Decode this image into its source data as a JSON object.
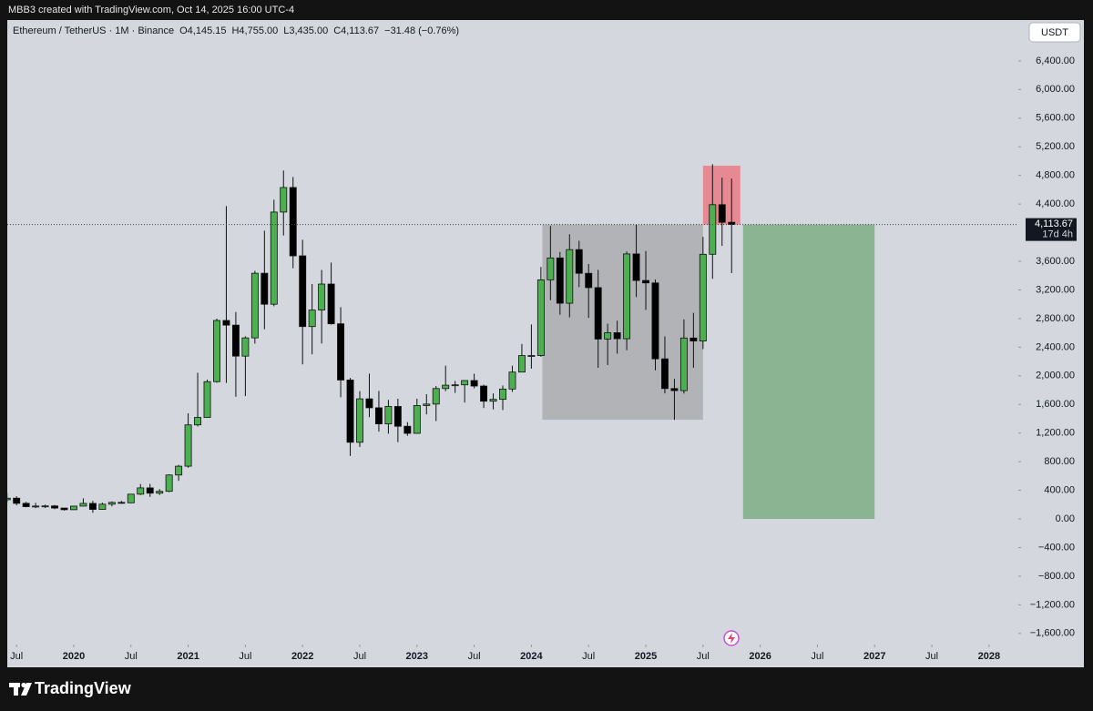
{
  "chart_data": {
    "type": "candlestick",
    "header": "MBB3 created with TradingView.com, Oct 14, 2025 16:00 UTC-4",
    "legend": {
      "symbol": "Ethereum / TetherUS · 1M · Binance",
      "items": [
        "O4,145.15",
        "H4,755.00",
        "L3,435.00",
        "C4,113.67",
        "−31.48 (−0.76%)"
      ]
    },
    "currency": "USDT",
    "footer": "TradingView",
    "up_color": "#4caf50",
    "down_color": "#000000",
    "border_color": "#111111",
    "x": [
      2019.4167,
      2019.5,
      2019.5833,
      2019.6667,
      2019.75,
      2019.8333,
      2019.9167,
      2020,
      2020.0833,
      2020.1667,
      2020.25,
      2020.3333,
      2020.4167,
      2020.5,
      2020.5833,
      2020.6667,
      2020.75,
      2020.8333,
      2020.9167,
      2021,
      2021.0833,
      2021.1667,
      2021.25,
      2021.3333,
      2021.4167,
      2021.5,
      2021.5833,
      2021.6667,
      2021.75,
      2021.8333,
      2021.9167,
      2022,
      2022.0833,
      2022.1667,
      2022.25,
      2022.3333,
      2022.4167,
      2022.5,
      2022.5833,
      2022.6667,
      2022.75,
      2022.8333,
      2022.9167,
      2023,
      2023.0833,
      2023.1667,
      2023.25,
      2023.3333,
      2023.4167,
      2023.5,
      2023.5833,
      2023.6667,
      2023.75,
      2023.8333,
      2023.9167,
      2024,
      2024.0833,
      2024.1667,
      2024.25,
      2024.3333,
      2024.4167,
      2024.5,
      2024.5833,
      2024.6667,
      2024.75,
      2024.8333,
      2024.9167,
      2025,
      2025.0833,
      2025.1667,
      2025.25,
      2025.3333,
      2025.4167,
      2025.5,
      2025.5833,
      2025.6667,
      2025.75
    ],
    "open": [
      268,
      290,
      218,
      172,
      180,
      182,
      152,
      129,
      179,
      217,
      133,
      206,
      231,
      225,
      346,
      434,
      360,
      386,
      614,
      737,
      1314,
      1418,
      1918,
      2773,
      2708,
      2275,
      2530,
      3433,
      3000,
      4288,
      4631,
      3676,
      2688,
      2919,
      3282,
      2727,
      1941,
      1071,
      1678,
      1553,
      1328,
      1572,
      1295,
      1196,
      1585,
      1605,
      1822,
      1869,
      1874,
      1934,
      1857,
      1645,
      1671,
      1815,
      2052,
      2283,
      2283,
      3341,
      3647,
      3014,
      3763,
      3432,
      3232,
      2513,
      2602,
      2518,
      3703,
      3332,
      3298,
      2237,
      1822,
      1793,
      2528,
      2486,
      3698,
      4391,
      4145.15
    ],
    "high": [
      361,
      317,
      239,
      224,
      199,
      195,
      153,
      184,
      288,
      253,
      228,
      245,
      253,
      349,
      488,
      489,
      417,
      623,
      756,
      1476,
      2042,
      1947,
      2799,
      4372,
      2891,
      2552,
      3466,
      4027,
      4460,
      4868,
      4778,
      3900,
      3282,
      3479,
      3582,
      2959,
      1970,
      1786,
      2030,
      1788,
      1663,
      1679,
      1353,
      1680,
      1743,
      1857,
      2142,
      1928,
      1929,
      2029,
      1876,
      1754,
      1865,
      2141,
      2445,
      2717,
      3522,
      4093,
      3730,
      3977,
      3887,
      3563,
      3480,
      2728,
      2770,
      3737,
      4109,
      3745,
      3346,
      2550,
      1957,
      2788,
      2880,
      3941,
      4956,
      4769,
      4755
    ],
    "low": [
      233,
      190,
      163,
      151,
      152,
      137,
      117,
      126,
      179,
      86,
      130,
      176,
      215,
      222,
      334,
      308,
      335,
      374,
      532,
      715,
      1293,
      1437,
      1904,
      1900,
      1707,
      1718,
      2450,
      2651,
      2971,
      3960,
      3503,
      2159,
      2300,
      2451,
      2715,
      1700,
      881,
      1006,
      1422,
      1220,
      1191,
      1073,
      1162,
      1190,
      1461,
      1368,
      1785,
      1761,
      1626,
      1825,
      1550,
      1531,
      1521,
      1776,
      2052,
      2100,
      2265,
      3056,
      2853,
      2817,
      3240,
      2810,
      2112,
      2151,
      2310,
      2357,
      3100,
      2920,
      2076,
      1754,
      1385,
      1752,
      2111,
      2373,
      3355,
      3815,
      3435
    ],
    "close": [
      290,
      218,
      172,
      180,
      182,
      152,
      129,
      179,
      217,
      133,
      206,
      231,
      225,
      346,
      434,
      360,
      386,
      614,
      737,
      1314,
      1418,
      1918,
      2773,
      2708,
      2275,
      2530,
      3433,
      3000,
      4288,
      4631,
      3676,
      2688,
      2919,
      3282,
      2727,
      1941,
      1071,
      1678,
      1553,
      1328,
      1572,
      1295,
      1196,
      1585,
      1605,
      1822,
      1869,
      1874,
      1934,
      1857,
      1645,
      1671,
      1815,
      2052,
      2283,
      2283,
      3341,
      3647,
      3014,
      3763,
      3432,
      3232,
      2513,
      2602,
      2518,
      3703,
      3332,
      3298,
      2237,
      1822,
      1793,
      2528,
      2486,
      3698,
      4391,
      4145.15,
      4113.67
    ],
    "xlim": [
      2019.419,
      2028.256
    ],
    "xticks": [
      {
        "value": 2019.5,
        "label": "Jul"
      },
      2020,
      {
        "value": 2020.5,
        "label": "Jul"
      },
      2021,
      {
        "value": 2021.5,
        "label": "Jul"
      },
      2022,
      {
        "value": 2022.5,
        "label": "Jul"
      },
      2023,
      {
        "value": 2023.5,
        "label": "Jul"
      },
      2024,
      {
        "value": 2024.5,
        "label": "Jul"
      },
      2025,
      {
        "value": 2025.5,
        "label": "Jul"
      },
      2026,
      {
        "value": 2026.5,
        "label": "Jul"
      },
      2027,
      {
        "value": 2027.5,
        "label": "Jul"
      },
      2028
    ],
    "ylim": [
      -1755,
      6971
    ],
    "yticks": [
      {
        "value": 6400,
        "label": "6,400.00"
      },
      {
        "value": 6000,
        "label": "6,000.00"
      },
      {
        "value": 5600,
        "label": "5,600.00"
      },
      {
        "value": 5200,
        "label": "5,200.00"
      },
      {
        "value": 4800,
        "label": "4,800.00"
      },
      {
        "value": 4400,
        "label": "4,400.00"
      },
      {
        "value": 3600,
        "label": "3,600.00"
      },
      {
        "value": 3200,
        "label": "3,200.00"
      },
      {
        "value": 2800,
        "label": "2,800.00"
      },
      {
        "value": 2400,
        "label": "2,400.00"
      },
      {
        "value": 2000,
        "label": "2,000.00"
      },
      {
        "value": 1600,
        "label": "1,600.00"
      },
      {
        "value": 1200,
        "label": "1,200.00"
      },
      {
        "value": 800,
        "label": "800.00"
      },
      {
        "value": 400,
        "label": "400.00"
      },
      {
        "value": 0,
        "label": "0.00"
      },
      {
        "value": -400,
        "label": "−400.00"
      },
      {
        "value": -800,
        "label": "−800.00"
      },
      {
        "value": -1200,
        "label": "−1,200.00"
      },
      {
        "value": -1600,
        "label": "−1,600.00"
      }
    ],
    "last_price": {
      "value": 4113.67,
      "label": "4,113.67",
      "countdown": "17d 4h"
    },
    "drawings": [
      {
        "color": "rgba(150,150,150,0.55)",
        "x": [
          2024.096,
          2025.5
        ],
        "y": [
          1386,
          4113.67
        ]
      },
      {
        "color": "rgba(236,104,112,0.7)",
        "x": [
          2025.5,
          2025.826
        ],
        "y": [
          4113.67,
          4935
        ]
      },
      {
        "color": "rgba(94,160,98,0.62)",
        "x": [
          2025.85,
          2027.0
        ],
        "y": [
          0,
          4113.67
        ]
      }
    ]
  }
}
